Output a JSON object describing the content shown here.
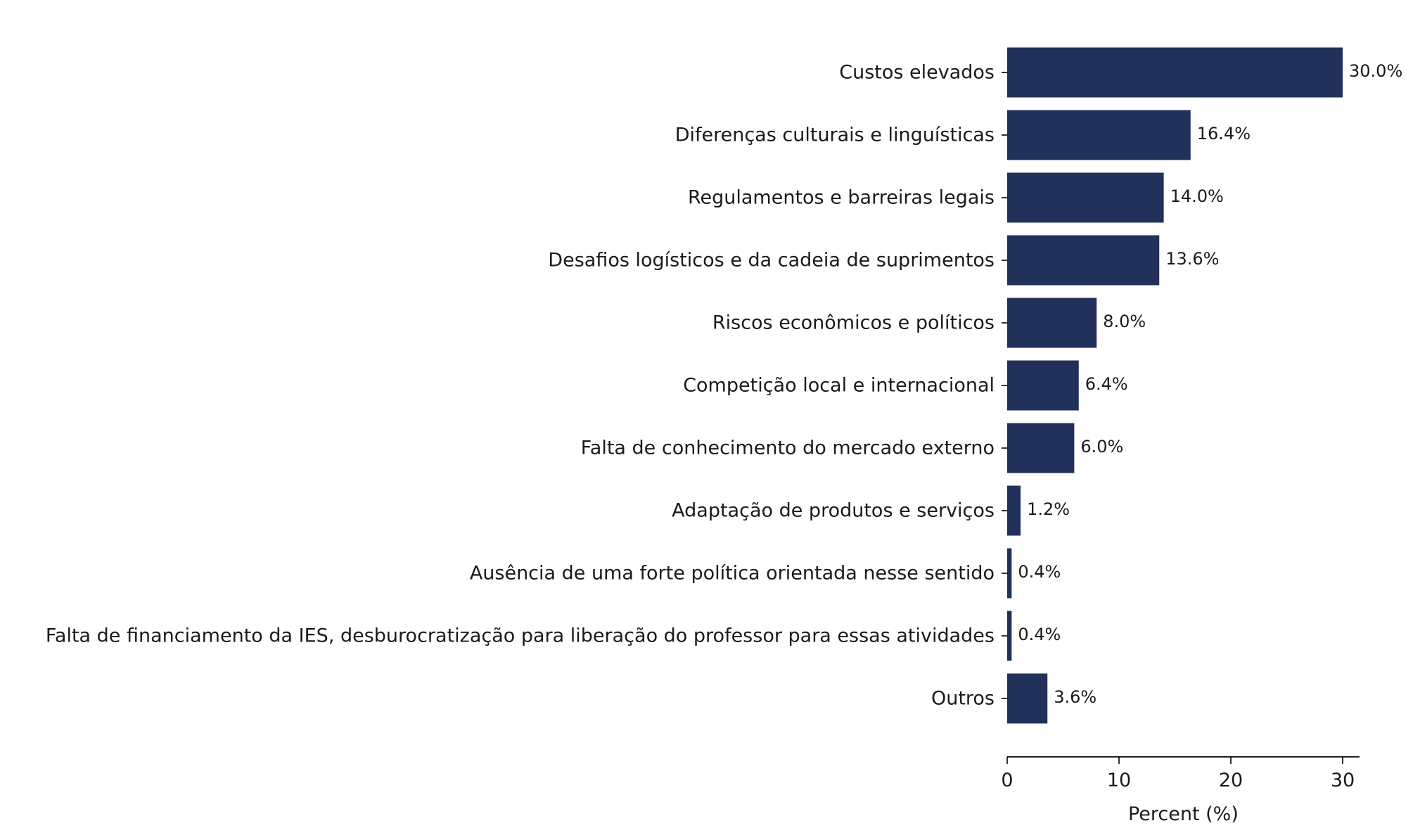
{
  "chart_data": {
    "type": "bar",
    "orientation": "horizontal",
    "categories": [
      "Custos elevados",
      "Diferenças culturais e linguísticas",
      "Regulamentos e barreiras legais",
      "Desafios logísticos e da cadeia de suprimentos",
      "Riscos econômicos e políticos",
      "Competição local e internacional",
      "Falta de conhecimento do mercado externo",
      "Adaptação de produtos e serviços",
      "Ausência de uma forte política orientada nesse sentido",
      "Falta de financiamento da IES, desburocratização para liberação do professor para essas atividades",
      "Outros"
    ],
    "values": [
      30.0,
      16.4,
      14.0,
      13.6,
      8.0,
      6.4,
      6.0,
      1.2,
      0.4,
      0.4,
      3.6
    ],
    "value_labels": [
      "30.0%",
      "16.4%",
      "14.0%",
      "13.6%",
      "8.0%",
      "6.4%",
      "6.0%",
      "1.2%",
      "0.4%",
      "0.4%",
      "3.6%"
    ],
    "title": "",
    "xlabel": "Percent (%)",
    "ylabel": "",
    "xlim": [
      0,
      31.5
    ],
    "xticks": [
      0,
      10,
      20,
      30
    ],
    "xtick_labels": [
      "0",
      "10",
      "20",
      "30"
    ],
    "grid": false,
    "bar_color": "#21315a"
  }
}
